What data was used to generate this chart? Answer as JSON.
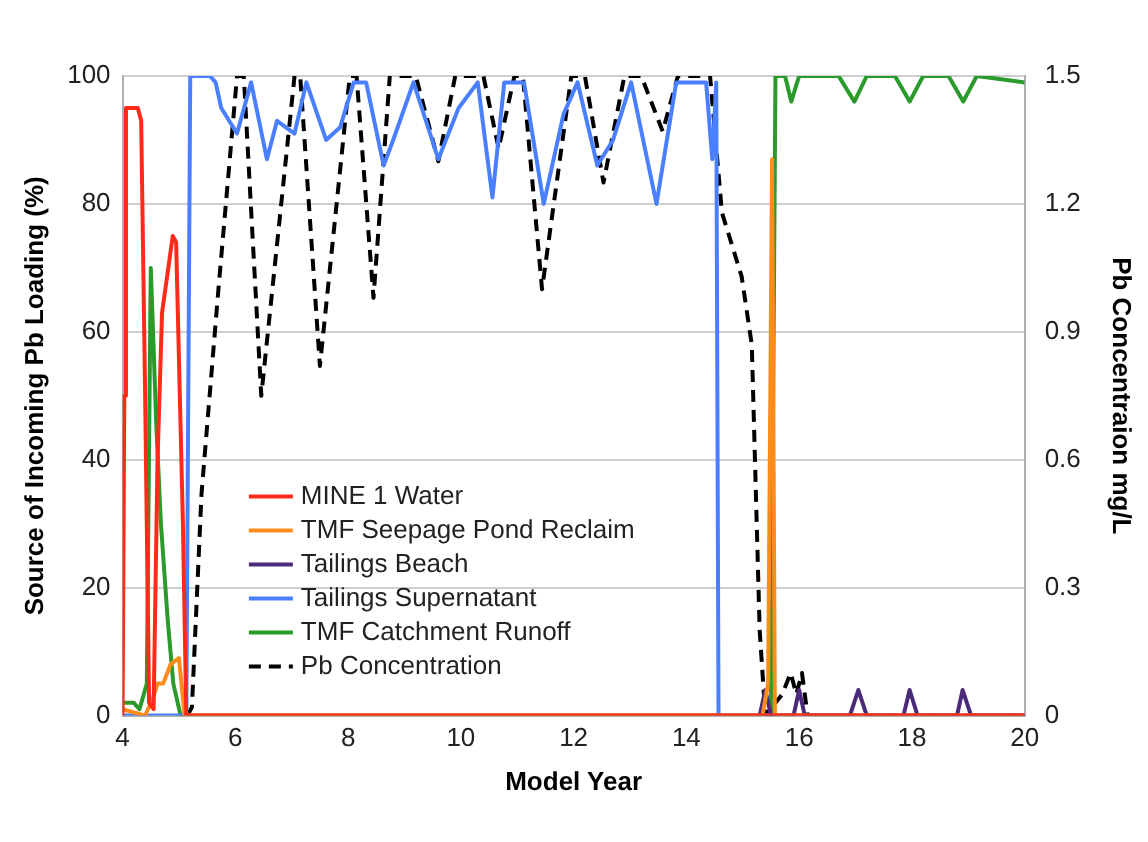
{
  "chart_data": {
    "type": "line",
    "xlabel": "Model Year",
    "ylabel": "Source of Incoming Pb Loading (%)",
    "y2label": "Pb Concentraion mg/L",
    "xlim": [
      4,
      20
    ],
    "xticks": [
      4,
      6,
      8,
      10,
      12,
      14,
      16,
      18,
      20
    ],
    "ylim": [
      0,
      100
    ],
    "yticks": [
      0,
      20,
      40,
      60,
      80,
      100
    ],
    "y2lim": [
      0,
      1.5
    ],
    "y2ticks": [
      0,
      0.3,
      0.6,
      0.9,
      1.2,
      1.5
    ],
    "grid": "y",
    "legend": "bottom left",
    "marker": "none",
    "series": [
      {
        "name": "MINE 1 Water",
        "color": "#ff2a1a",
        "x": [
          4,
          4.03,
          4.06,
          4.27,
          4.33,
          4.4,
          4.47,
          4.55,
          4.62,
          4.7,
          4.89,
          4.95,
          5.07,
          5.13,
          20
        ],
        "values": [
          0,
          50,
          95,
          95,
          93,
          50,
          2,
          1,
          40,
          63,
          75,
          74,
          30,
          0,
          0
        ]
      },
      {
        "name": "TMF Seepage Pond Reclaim",
        "color": "#ff8c1a",
        "x": [
          4,
          4.4,
          4.55,
          4.62,
          4.72,
          4.85,
          5.0,
          5.1,
          15.35,
          15.45,
          15.52,
          15.57,
          20
        ],
        "values": [
          1,
          0,
          3,
          5,
          5,
          8,
          9,
          0,
          0,
          5,
          87,
          0,
          0
        ]
      },
      {
        "name": "Tailings Beach",
        "color": "#4b2a7a",
        "x": [
          15.3,
          15.4,
          15.5,
          15.9,
          16.0,
          16.1,
          16.9,
          17.05,
          17.2,
          17.85,
          17.96,
          18.1,
          18.8,
          18.9,
          19.05,
          20
        ],
        "values": [
          0,
          4,
          0,
          0,
          4,
          0,
          0,
          4,
          0,
          0,
          4,
          0,
          0,
          4,
          0,
          0
        ]
      },
      {
        "name": "Tailings Supernatant",
        "color": "#4a7fff",
        "x": [
          4,
          5.13,
          5.2,
          5.55,
          5.65,
          5.75,
          6.03,
          6.28,
          6.56,
          6.74,
          7.05,
          7.26,
          7.61,
          7.86,
          8.1,
          8.32,
          8.63,
          8.8,
          9.16,
          9.6,
          9.96,
          10.3,
          10.56,
          10.77,
          11.12,
          11.47,
          11.82,
          12.07,
          12.42,
          12.7,
          13.02,
          13.47,
          13.82,
          14.35,
          14.46,
          14.53,
          14.57,
          20
        ],
        "values": [
          0,
          0,
          100,
          100,
          99,
          95,
          91,
          99,
          87,
          93,
          91,
          99,
          90,
          92,
          99,
          99,
          86,
          90,
          99,
          87,
          95,
          99,
          81,
          99,
          99,
          80,
          94,
          99,
          86,
          90,
          99,
          80,
          99,
          99,
          87,
          99,
          0,
          0
        ]
      },
      {
        "name": "TMF Catchment Runoff",
        "color": "#2a9a2a",
        "x": [
          4,
          4.2,
          4.3,
          4.43,
          4.5,
          4.6,
          4.68,
          4.8,
          4.9,
          5.03,
          15.5,
          15.58,
          15.75,
          15.86,
          16.0,
          16.7,
          16.98,
          17.2,
          17.7,
          17.96,
          18.2,
          18.65,
          18.91,
          19.15,
          20
        ],
        "values": [
          2,
          2,
          1,
          5,
          70,
          45,
          30,
          15,
          5,
          0,
          0,
          100,
          100,
          96,
          100,
          100,
          96,
          100,
          100,
          96,
          100,
          100,
          96,
          100,
          99
        ]
      },
      {
        "name": "Pb Concentration",
        "color": "#000000",
        "axis": "y2",
        "line_style": "dashed",
        "x": [
          5.15,
          5.23,
          5.4,
          5.7,
          6.03,
          6.15,
          6.46,
          7.05,
          7.15,
          7.5,
          8.03,
          8.15,
          8.45,
          8.74,
          9.2,
          9.6,
          9.9,
          10.4,
          10.67,
          10.95,
          11.1,
          11.44,
          11.96,
          12.2,
          12.53,
          12.9,
          13.2,
          13.58,
          13.85,
          14.42,
          14.63,
          14.98,
          15.16,
          15.3,
          15.4,
          15.7,
          15.85,
          15.95,
          16.05,
          16.15,
          20
        ],
        "values": [
          0,
          0.02,
          0.52,
          1.0,
          1.5,
          1.5,
          0.75,
          1.5,
          1.5,
          0.82,
          1.5,
          1.5,
          0.98,
          1.5,
          1.5,
          1.3,
          1.5,
          1.5,
          1.33,
          1.5,
          1.5,
          1.0,
          1.5,
          1.5,
          1.25,
          1.5,
          1.5,
          1.37,
          1.5,
          1.5,
          1.18,
          1.03,
          0.87,
          0.2,
          0,
          0.05,
          0.1,
          0.05,
          0.1,
          0,
          0
        ]
      }
    ]
  }
}
